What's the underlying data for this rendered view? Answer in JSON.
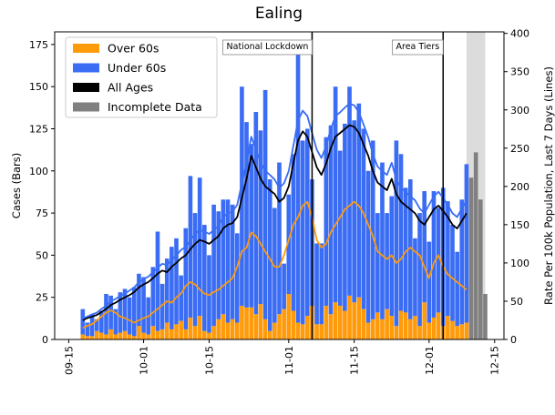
{
  "chart_data": {
    "type": "bar",
    "title": "Ealing",
    "ylabel": "Cases (Bars)",
    "y2label": "Rate Per 100k Population, Last 7 Days (Lines)",
    "xlim": [
      "09-12",
      "12-17"
    ],
    "xticks": [
      "09-15",
      "10-01",
      "10-15",
      "11-01",
      "11-15",
      "12-01",
      "12-15"
    ],
    "ylim": [
      0,
      182.5
    ],
    "yticks": [
      0,
      25,
      50,
      75,
      100,
      125,
      150,
      175
    ],
    "y2lim": [
      0,
      402
    ],
    "y2ticks": [
      0,
      50,
      100,
      150,
      200,
      250,
      300,
      350,
      400
    ],
    "legend": "upper left",
    "x": [
      "09-18",
      "09-19",
      "09-20",
      "09-21",
      "09-22",
      "09-23",
      "09-24",
      "09-25",
      "09-26",
      "09-27",
      "09-28",
      "09-29",
      "09-30",
      "10-01",
      "10-02",
      "10-03",
      "10-04",
      "10-05",
      "10-06",
      "10-07",
      "10-08",
      "10-09",
      "10-10",
      "10-11",
      "10-12",
      "10-13",
      "10-14",
      "10-15",
      "10-16",
      "10-17",
      "10-18",
      "10-19",
      "10-20",
      "10-21",
      "10-22",
      "10-23",
      "10-24",
      "10-25",
      "10-26",
      "10-27",
      "10-28",
      "10-29",
      "10-30",
      "10-31",
      "11-01",
      "11-02",
      "11-03",
      "11-04",
      "11-05",
      "11-06",
      "11-07",
      "11-08",
      "11-09",
      "11-10",
      "11-11",
      "11-12",
      "11-13",
      "11-14",
      "11-15",
      "11-16",
      "11-17",
      "11-18",
      "11-19",
      "11-20",
      "11-21",
      "11-22",
      "11-23",
      "11-24",
      "11-25",
      "11-26",
      "11-27",
      "11-28",
      "11-29",
      "11-30",
      "12-01",
      "12-02",
      "12-03",
      "12-04",
      "12-05",
      "12-06",
      "12-07",
      "12-08",
      "12-09"
    ],
    "series": [
      {
        "name": "Over 60s",
        "color": "#ff9a0a",
        "values": [
          3,
          2,
          2,
          5,
          4,
          3,
          6,
          3,
          4,
          5,
          3,
          2,
          8,
          4,
          3,
          8,
          5,
          6,
          10,
          6,
          9,
          11,
          6,
          13,
          8,
          14,
          5,
          4,
          8,
          12,
          15,
          10,
          12,
          10,
          20,
          19,
          19,
          15,
          21,
          12,
          5,
          10,
          15,
          18,
          27,
          17,
          10,
          9,
          14,
          20,
          9,
          9,
          20,
          15,
          22,
          20,
          17,
          26,
          22,
          25,
          18,
          10,
          12,
          16,
          12,
          18,
          14,
          8,
          17,
          16,
          12,
          14,
          8,
          22,
          10,
          13,
          16,
          8,
          14,
          11,
          8,
          9,
          10
        ],
        "rate": [
          15,
          18,
          20,
          25,
          30,
          35,
          38,
          35,
          30,
          28,
          25,
          22,
          25,
          28,
          30,
          35,
          40,
          45,
          50,
          48,
          55,
          60,
          70,
          75,
          72,
          65,
          60,
          58,
          62,
          65,
          70,
          75,
          80,
          95,
          115,
          120,
          140,
          135,
          125,
          115,
          105,
          95,
          95,
          110,
          130,
          150,
          160,
          175,
          180,
          160,
          130,
          120,
          125,
          140,
          150,
          160,
          170,
          175,
          180,
          175,
          165,
          150,
          135,
          115,
          110,
          105,
          110,
          100,
          105,
          115,
          120,
          115,
          110,
          95,
          80,
          100,
          110,
          95,
          85,
          80,
          75,
          70,
          65
        ]
      },
      {
        "name": "Under 60s",
        "color": "#3a6cf4",
        "values": [
          15,
          8,
          13,
          7,
          13,
          24,
          20,
          15,
          24,
          25,
          22,
          29,
          31,
          33,
          22,
          35,
          59,
          27,
          38,
          49,
          51,
          27,
          60,
          84,
          67,
          82,
          63,
          46,
          72,
          64,
          68,
          73,
          68,
          53,
          130,
          110,
          97,
          120,
          103,
          136,
          90,
          68,
          90,
          27,
          59,
          93,
          162,
          109,
          111,
          75,
          48,
          48,
          100,
          112,
          128,
          92,
          111,
          124,
          108,
          115,
          107,
          90,
          106,
          59,
          93,
          57,
          71,
          110,
          93,
          74,
          83,
          46,
          67,
          66,
          48,
          75,
          62,
          82,
          68,
          57,
          44,
          74,
          94
        ],
        "rate": [
          27,
          30,
          33,
          35,
          40,
          44,
          50,
          53,
          57,
          60,
          64,
          68,
          75,
          79,
          82,
          88,
          94,
          99,
          97,
          104,
          110,
          117,
          121,
          130,
          138,
          143,
          141,
          138,
          143,
          149,
          160,
          165,
          167,
          176,
          204,
          231,
          265,
          248,
          231,
          220,
          215,
          209,
          198,
          204,
          220,
          253,
          286,
          299,
          292,
          270,
          248,
          237,
          253,
          275,
          292,
          297,
          303,
          308,
          306,
          297,
          281,
          264,
          242,
          226,
          220,
          215,
          231,
          209,
          198,
          193,
          187,
          182,
          171,
          165,
          176,
          187,
          193,
          185,
          176,
          165,
          160,
          171,
          182
        ]
      }
    ],
    "lines": [
      {
        "name": "All Ages",
        "color": "#000000",
        "axis": "y2",
        "values": [
          25,
          28,
          30,
          32,
          36,
          40,
          45,
          48,
          52,
          55,
          58,
          62,
          68,
          72,
          75,
          80,
          86,
          90,
          88,
          95,
          100,
          106,
          110,
          118,
          125,
          130,
          128,
          125,
          130,
          135,
          145,
          150,
          152,
          160,
          185,
          210,
          240,
          225,
          210,
          200,
          195,
          190,
          180,
          185,
          200,
          230,
          260,
          272,
          265,
          245,
          225,
          215,
          230,
          250,
          265,
          270,
          275,
          280,
          278,
          270,
          255,
          240,
          220,
          205,
          200,
          195,
          210,
          190,
          180,
          175,
          170,
          165,
          155,
          150,
          160,
          170,
          175,
          168,
          160,
          150,
          145,
          155,
          165
        ]
      }
    ],
    "incomplete": {
      "name": "Incomplete Data",
      "color": "#808080",
      "x": [
        "12-10",
        "12-11",
        "12-12",
        "12-13"
      ],
      "values": [
        96,
        111,
        83,
        27
      ],
      "shade": [
        "12-09",
        "12-13"
      ]
    },
    "annotations": [
      {
        "text": "National Lockdown",
        "x": "11-06"
      },
      {
        "text": "Area Tiers",
        "x": "12-04"
      }
    ]
  }
}
